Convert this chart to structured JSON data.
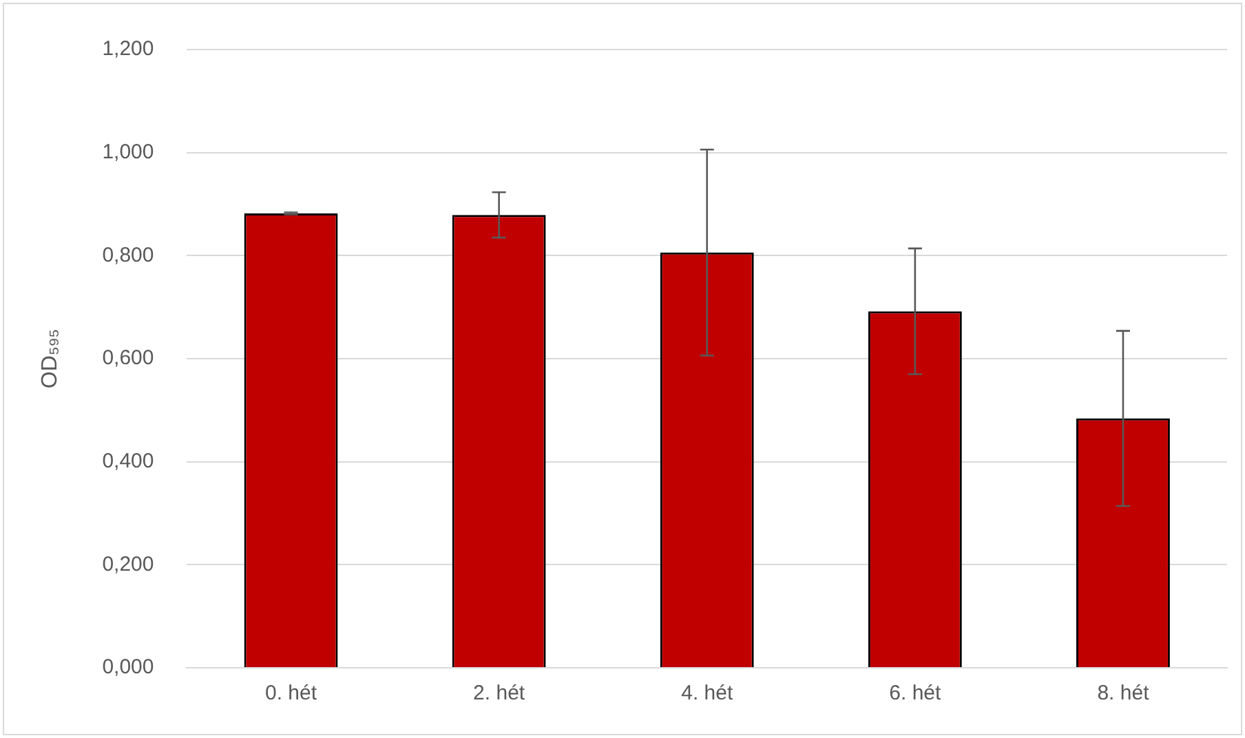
{
  "chart_data": {
    "type": "bar",
    "ylabel": "OD₅₉₅",
    "categories": [
      "0. hét",
      "2. hét",
      "4. hét",
      "6. hét",
      "8. hét"
    ],
    "values": [
      0.882,
      0.879,
      0.806,
      0.692,
      0.484
    ],
    "errors": [
      0.002,
      0.044,
      0.2,
      0.122,
      0.17
    ],
    "color": "#c00000",
    "ylim": [
      0,
      1.2
    ],
    "yticks": [
      {
        "value": 0,
        "label": "0,000"
      },
      {
        "value": 0.2,
        "label": "0,200"
      },
      {
        "value": 0.4,
        "label": "0,400"
      },
      {
        "value": 0.6,
        "label": "0,600"
      },
      {
        "value": 0.8,
        "label": "0,800"
      },
      {
        "value": 1,
        "label": "1,000"
      },
      {
        "value": 1.2,
        "label": "1,200"
      }
    ],
    "grid": "y"
  }
}
